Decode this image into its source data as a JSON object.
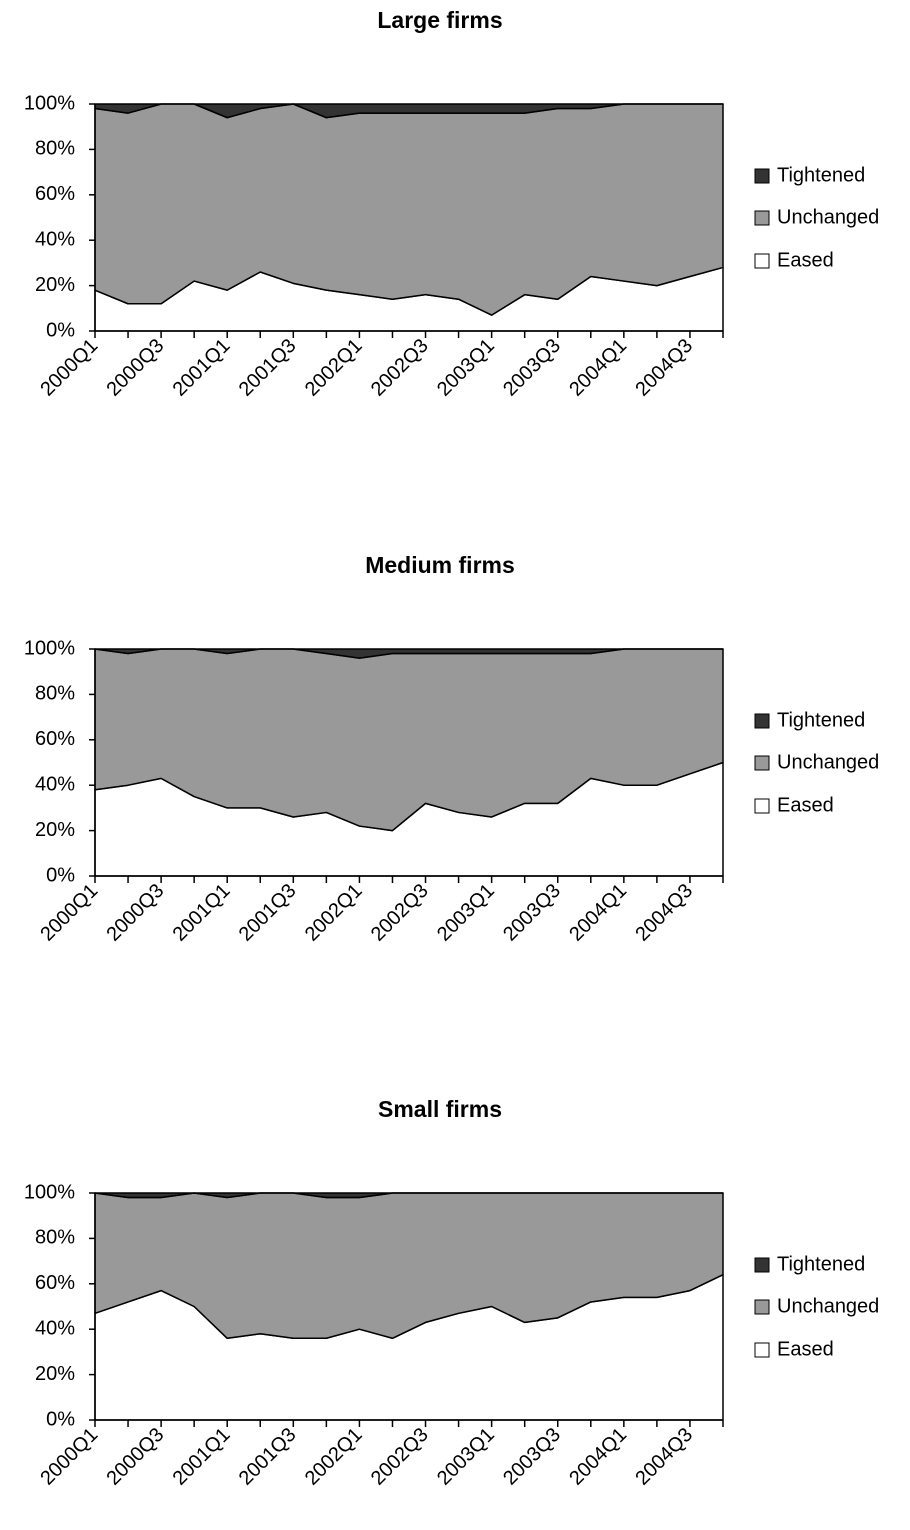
{
  "chart_data": [
    {
      "type": "area",
      "stacked": true,
      "title": "Large firms",
      "categories": [
        "2000Q1",
        null,
        "2000Q3",
        null,
        "2001Q1",
        null,
        "2001Q3",
        null,
        "2002Q1",
        null,
        "2002Q3",
        null,
        "2003Q1",
        null,
        "2003Q3",
        null,
        "2004Q1",
        null,
        "2004Q3",
        null
      ],
      "series": [
        {
          "name": "Eased",
          "color": "#ffffff",
          "values": [
            18,
            12,
            12,
            22,
            18,
            26,
            21,
            18,
            16,
            14,
            16,
            14,
            7,
            16,
            14,
            24,
            22,
            20,
            24,
            28
          ]
        },
        {
          "name": "Unchanged",
          "color": "#999999",
          "values": [
            80,
            84,
            88,
            78,
            76,
            72,
            79,
            76,
            80,
            82,
            80,
            82,
            89,
            80,
            84,
            74,
            78,
            80,
            76,
            72
          ]
        },
        {
          "name": "Tightened",
          "color": "#333333",
          "values": [
            2,
            4,
            0,
            0,
            6,
            2,
            0,
            6,
            4,
            4,
            4,
            4,
            4,
            4,
            2,
            2,
            0,
            0,
            0,
            0
          ]
        }
      ],
      "ylim": [
        0,
        100
      ],
      "yticks": [
        {
          "value": 0,
          "label": "0%"
        },
        {
          "value": 20,
          "label": "20%"
        },
        {
          "value": 40,
          "label": "40%"
        },
        {
          "value": 60,
          "label": "60%"
        },
        {
          "value": 80,
          "label": "80%"
        },
        {
          "value": 100,
          "label": "100%"
        }
      ],
      "legend": "right"
    },
    {
      "type": "area",
      "stacked": true,
      "title": "Medium firms",
      "categories": [
        "2000Q1",
        null,
        "2000Q3",
        null,
        "2001Q1",
        null,
        "2001Q3",
        null,
        "2002Q1",
        null,
        "2002Q3",
        null,
        "2003Q1",
        null,
        "2003Q3",
        null,
        "2004Q1",
        null,
        "2004Q3",
        null
      ],
      "series": [
        {
          "name": "Eased",
          "color": "#ffffff",
          "values": [
            38,
            40,
            43,
            35,
            30,
            30,
            26,
            28,
            22,
            20,
            32,
            28,
            26,
            32,
            32,
            43,
            40,
            40,
            45,
            50
          ]
        },
        {
          "name": "Unchanged",
          "color": "#999999",
          "values": [
            62,
            58,
            57,
            65,
            68,
            70,
            74,
            70,
            74,
            78,
            66,
            70,
            72,
            66,
            66,
            55,
            60,
            60,
            55,
            50
          ]
        },
        {
          "name": "Tightened",
          "color": "#333333",
          "values": [
            0,
            2,
            0,
            0,
            2,
            0,
            0,
            2,
            4,
            2,
            2,
            2,
            2,
            2,
            2,
            2,
            0,
            0,
            0,
            0
          ]
        }
      ],
      "ylim": [
        0,
        100
      ],
      "yticks": [
        {
          "value": 0,
          "label": "0%"
        },
        {
          "value": 20,
          "label": "20%"
        },
        {
          "value": 40,
          "label": "40%"
        },
        {
          "value": 60,
          "label": "60%"
        },
        {
          "value": 80,
          "label": "80%"
        },
        {
          "value": 100,
          "label": "100%"
        }
      ],
      "legend": "right"
    },
    {
      "type": "area",
      "stacked": true,
      "title": "Small firms",
      "categories": [
        "2000Q1",
        null,
        "2000Q3",
        null,
        "2001Q1",
        null,
        "2001Q3",
        null,
        "2002Q1",
        null,
        "2002Q3",
        null,
        "2003Q1",
        null,
        "2003Q3",
        null,
        "2004Q1",
        null,
        "2004Q3",
        null
      ],
      "series": [
        {
          "name": "Eased",
          "color": "#ffffff",
          "values": [
            47,
            52,
            57,
            50,
            36,
            38,
            36,
            36,
            40,
            36,
            43,
            47,
            50,
            43,
            45,
            52,
            54,
            54,
            57,
            64
          ]
        },
        {
          "name": "Unchanged",
          "color": "#999999",
          "values": [
            53,
            46,
            41,
            50,
            62,
            62,
            64,
            62,
            58,
            64,
            57,
            53,
            50,
            57,
            55,
            48,
            46,
            46,
            43,
            36
          ]
        },
        {
          "name": "Tightened",
          "color": "#333333",
          "values": [
            0,
            2,
            2,
            0,
            2,
            0,
            0,
            2,
            2,
            0,
            0,
            0,
            0,
            0,
            0,
            0,
            0,
            0,
            0,
            0
          ]
        }
      ],
      "ylim": [
        0,
        100
      ],
      "yticks": [
        {
          "value": 0,
          "label": "0%"
        },
        {
          "value": 20,
          "label": "20%"
        },
        {
          "value": 40,
          "label": "40%"
        },
        {
          "value": 60,
          "label": "60%"
        },
        {
          "value": 80,
          "label": "80%"
        },
        {
          "value": 100,
          "label": "100%"
        }
      ],
      "legend": "right"
    }
  ]
}
